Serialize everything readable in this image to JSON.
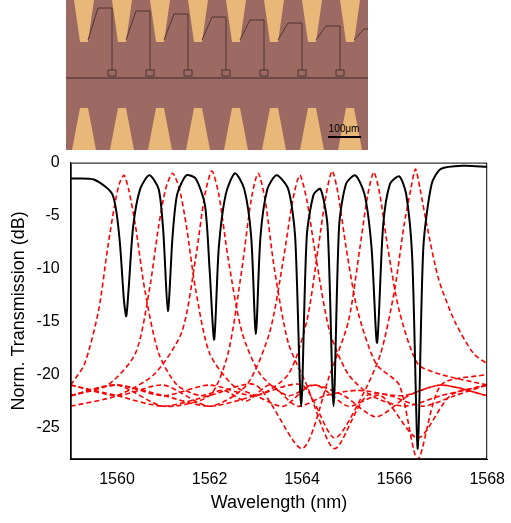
{
  "image": {
    "scale_bar": "100μm"
  },
  "chart_data": {
    "type": "line",
    "x_label": "Wavelength (nm)",
    "y_label": "Norm. Transmission (dB)",
    "xlim": [
      1559,
      1568
    ],
    "xticks": [
      1560,
      1562,
      1564,
      1566,
      1568
    ],
    "ylim": [
      -28,
      0
    ],
    "yticks": [
      -25,
      -20,
      -15,
      -10,
      -5,
      0
    ],
    "grid": false,
    "series": [
      {
        "color": "#000000",
        "line_style": "solid",
        "x": [
          1559,
          1559.5,
          1559.9,
          1560.05,
          1560.15,
          1560.2,
          1560.25,
          1560.35,
          1560.5,
          1560.7,
          1560.9,
          1561.0,
          1561.1,
          1561.2,
          1561.3,
          1561.5,
          1561.7,
          1561.9,
          1562.0,
          1562.1,
          1562.2,
          1562.35,
          1562.55,
          1562.75,
          1562.9,
          1563.0,
          1563.1,
          1563.25,
          1563.45,
          1563.7,
          1563.85,
          1563.98,
          1564.1,
          1564.25,
          1564.4,
          1564.55,
          1564.68,
          1564.8,
          1564.95,
          1565.15,
          1565.35,
          1565.5,
          1565.62,
          1565.75,
          1565.9,
          1566.1,
          1566.25,
          1566.38,
          1566.5,
          1566.62,
          1566.8,
          1567.0,
          1567.5,
          1568
        ],
        "values": [
          -1.5,
          -1.6,
          -3,
          -7,
          -13,
          -14.5,
          -12,
          -6,
          -2.5,
          -1.2,
          -2.5,
          -6.5,
          -14,
          -7,
          -3,
          -1.2,
          -1.5,
          -4,
          -10,
          -16.7,
          -8,
          -3,
          -1,
          -2.5,
          -7,
          -16.2,
          -7,
          -2.5,
          -1.2,
          -2.5,
          -7,
          -23,
          -7,
          -3,
          -2.5,
          -6,
          -23,
          -6,
          -2,
          -1.2,
          -3,
          -8,
          -17,
          -6,
          -2,
          -1.3,
          -3,
          -9,
          -27,
          -8,
          -2,
          -0.6,
          -0.3,
          -0.4
        ]
      },
      {
        "color": "#ff0000",
        "line_style": "dashed",
        "x": [
          1559,
          1559.3,
          1559.6,
          1559.8,
          1559.95,
          1560.05,
          1560.15,
          1560.25,
          1560.4,
          1560.6,
          1560.9,
          1561.3,
          1561.8,
          1562.3,
          1562.8,
          1563.3,
          1563.9,
          1564.5,
          1565.2,
          1565.9,
          1566.6,
          1567.3,
          1568
        ],
        "values": [
          -21,
          -19,
          -14,
          -8,
          -4,
          -2,
          -1.2,
          -2.5,
          -6,
          -12,
          -18,
          -21,
          -22,
          -21.5,
          -22.5,
          -21,
          -23,
          -22,
          -21.5,
          -22,
          -23,
          -22,
          -21
        ]
      },
      {
        "color": "#ff0000",
        "line_style": "dashed",
        "x": [
          1559,
          1559.8,
          1560.4,
          1560.7,
          1560.9,
          1561.05,
          1561.2,
          1561.35,
          1561.5,
          1561.7,
          1562.0,
          1562.5,
          1563.0,
          1563.6,
          1564.2,
          1564.9,
          1565.6,
          1566.3,
          1567,
          1568
        ],
        "values": [
          -22,
          -21,
          -18,
          -12,
          -6,
          -2.5,
          -1,
          -2.5,
          -6,
          -12,
          -18,
          -21,
          -22,
          -23,
          -21,
          -22,
          -24,
          -22,
          -21,
          -22
        ]
      },
      {
        "color": "#ff0000",
        "line_style": "dashed",
        "x": [
          1559,
          1560,
          1560.8,
          1561.4,
          1561.7,
          1561.9,
          1562.05,
          1562.2,
          1562.4,
          1562.7,
          1563.1,
          1563.7,
          1564.3,
          1565,
          1565.7,
          1566.5,
          1567.2,
          1568
        ],
        "values": [
          -23,
          -22,
          -20,
          -16,
          -9,
          -3,
          -0.8,
          -3,
          -9,
          -16,
          -20,
          -22,
          -21,
          -23,
          -22,
          -26,
          -22,
          -21
        ]
      },
      {
        "color": "#ff0000",
        "line_style": "dashed",
        "x": [
          1559,
          1560,
          1561,
          1562,
          1562.4,
          1562.7,
          1562.9,
          1563.05,
          1563.2,
          1563.4,
          1563.7,
          1564.1,
          1564.7,
          1565.4,
          1566.2,
          1567,
          1568
        ],
        "values": [
          -22,
          -21,
          -23,
          -22,
          -18,
          -10,
          -3.5,
          -1,
          -3.5,
          -10,
          -17,
          -21,
          -27,
          -22,
          -22,
          -21,
          -22
        ]
      },
      {
        "color": "#ff0000",
        "line_style": "dashed",
        "x": [
          1559,
          1560,
          1561,
          1562,
          1562.8,
          1563.3,
          1563.6,
          1563.8,
          1563.95,
          1564.1,
          1564.3,
          1564.6,
          1565.0,
          1565.5,
          1566.2,
          1567,
          1568
        ],
        "values": [
          -21,
          -22,
          -21,
          -23,
          -21,
          -16,
          -9,
          -3.5,
          -1.2,
          -3.5,
          -9,
          -16,
          -20,
          -22,
          -23,
          -22,
          -21
        ]
      },
      {
        "color": "#ff0000",
        "line_style": "dashed",
        "x": [
          1559,
          1560,
          1561,
          1562,
          1563,
          1563.7,
          1564.1,
          1564.35,
          1564.52,
          1564.65,
          1564.78,
          1564.95,
          1565.2,
          1565.6,
          1566.1,
          1566.5,
          1567,
          1568
        ],
        "values": [
          -22,
          -21,
          -22,
          -21,
          -22,
          -20,
          -15,
          -8,
          -3,
          -0.8,
          -3,
          -8,
          -14,
          -19,
          -21,
          -28,
          -21,
          -20
        ]
      },
      {
        "color": "#ff0000",
        "line_style": "dashed",
        "x": [
          1559,
          1560,
          1561,
          1562,
          1563,
          1564,
          1564.6,
          1565,
          1565.25,
          1565.42,
          1565.55,
          1565.68,
          1565.85,
          1566.1,
          1566.5,
          1567,
          1568
        ],
        "values": [
          -21,
          -22,
          -23,
          -22,
          -21,
          -27,
          -20,
          -15,
          -8,
          -3,
          -0.9,
          -3,
          -8,
          -14,
          -19,
          -20,
          -21
        ]
      },
      {
        "color": "#ff0000",
        "line_style": "dashed",
        "x": [
          1559,
          1560,
          1561,
          1562,
          1563,
          1564,
          1564.7,
          1565.3,
          1565.7,
          1566.0,
          1566.2,
          1566.35,
          1566.45,
          1566.55,
          1566.7,
          1566.95,
          1567.3,
          1567.7,
          1568
        ],
        "values": [
          -22,
          -21,
          -22,
          -23,
          -22,
          -21,
          -26,
          -22,
          -18,
          -12,
          -6,
          -2.5,
          -0.6,
          -2.5,
          -6,
          -11,
          -15,
          -18,
          -19
        ]
      }
    ]
  }
}
